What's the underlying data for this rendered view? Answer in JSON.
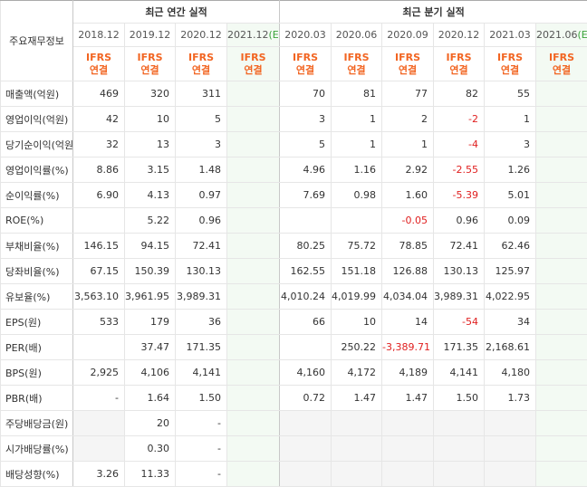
{
  "header": {
    "title": "주요재무정보",
    "groups": [
      {
        "label": "최근 연간 실적",
        "span": 4
      },
      {
        "label": "최근 분기 실적",
        "span": 6
      }
    ]
  },
  "columns": [
    {
      "label": "2018.12",
      "standard": "IFRS",
      "basis": "연결"
    },
    {
      "label": "2019.12",
      "standard": "IFRS",
      "basis": "연결"
    },
    {
      "label": "2020.12",
      "standard": "IFRS",
      "basis": "연결"
    },
    {
      "label": "2021.12",
      "tag": "(E)",
      "standard": "IFRS",
      "basis": "연결"
    },
    {
      "label": "2020.03",
      "standard": "IFRS",
      "basis": "연결"
    },
    {
      "label": "2020.06",
      "standard": "IFRS",
      "basis": "연결"
    },
    {
      "label": "2020.09",
      "standard": "IFRS",
      "basis": "연결"
    },
    {
      "label": "2020.12",
      "standard": "IFRS",
      "basis": "연결"
    },
    {
      "label": "2021.03",
      "standard": "IFRS",
      "basis": "연결"
    },
    {
      "label": "2021.06",
      "tag": "(E)",
      "standard": "IFRS",
      "basis": "연결"
    }
  ],
  "sections": [
    {
      "rows": [
        {
          "label": "매출액(억원)",
          "values": [
            "469",
            "320",
            "311",
            null,
            "70",
            "81",
            "77",
            "82",
            "55",
            null
          ]
        },
        {
          "label": "영업이익(억원)",
          "values": [
            "42",
            "10",
            "5",
            null,
            "3",
            "1",
            "2",
            "-2",
            "1",
            null
          ]
        },
        {
          "label": "당기순이익(억원)",
          "values": [
            "32",
            "13",
            "3",
            null,
            "5",
            "1",
            "1",
            "-4",
            "3",
            null
          ]
        }
      ]
    },
    {
      "rows": [
        {
          "label": "영업이익률(%)",
          "values": [
            "8.86",
            "3.15",
            "1.48",
            null,
            "4.96",
            "1.16",
            "2.92",
            "-2.55",
            "1.26",
            null
          ]
        },
        {
          "label": "순이익률(%)",
          "values": [
            "6.90",
            "4.13",
            "0.97",
            null,
            "7.69",
            "0.98",
            "1.60",
            "-5.39",
            "5.01",
            null
          ]
        },
        {
          "label": "ROE(%)",
          "values": [
            null,
            "5.22",
            "0.96",
            null,
            null,
            null,
            "-0.05",
            "0.96",
            "0.09",
            null
          ]
        }
      ]
    },
    {
      "rows": [
        {
          "label": "부채비율(%)",
          "values": [
            "146.15",
            "94.15",
            "72.41",
            null,
            "80.25",
            "75.72",
            "78.85",
            "72.41",
            "62.46",
            null
          ]
        },
        {
          "label": "당좌비율(%)",
          "values": [
            "67.15",
            "150.39",
            "130.13",
            null,
            "162.55",
            "151.18",
            "126.88",
            "130.13",
            "125.97",
            null
          ]
        },
        {
          "label": "유보율(%)",
          "values": [
            "3,563.10",
            "3,961.95",
            "3,989.31",
            null,
            "4,010.24",
            "4,019.99",
            "4,034.04",
            "3,989.31",
            "4,022.95",
            null
          ]
        }
      ]
    },
    {
      "rows": [
        {
          "label": "EPS(원)",
          "values": [
            "533",
            "179",
            "36",
            null,
            "66",
            "10",
            "14",
            "-54",
            "34",
            null
          ]
        },
        {
          "label": "PER(배)",
          "values": [
            null,
            "37.47",
            "171.35",
            null,
            null,
            "250.22",
            "-3,389.71",
            "171.35",
            "2,168.61",
            null
          ]
        },
        {
          "label": "BPS(원)",
          "values": [
            "2,925",
            "4,106",
            "4,141",
            null,
            "4,160",
            "4,172",
            "4,189",
            "4,141",
            "4,180",
            null
          ]
        },
        {
          "label": "PBR(배)",
          "values": [
            "-",
            "1.64",
            "1.50",
            null,
            "0.72",
            "1.47",
            "1.47",
            "1.50",
            "1.73",
            null
          ]
        }
      ]
    },
    {
      "rows": [
        {
          "label": "주당배당금(원)",
          "values": [
            null,
            "20",
            "-",
            null,
            null,
            null,
            null,
            null,
            null,
            null
          ]
        },
        {
          "label": "시가배당률(%)",
          "values": [
            null,
            "0.30",
            "-",
            null,
            null,
            null,
            null,
            null,
            null,
            null
          ]
        },
        {
          "label": "배당성향(%)",
          "values": [
            "3.26",
            "11.33",
            "-",
            null,
            null,
            null,
            null,
            null,
            null,
            null
          ]
        }
      ]
    }
  ]
}
